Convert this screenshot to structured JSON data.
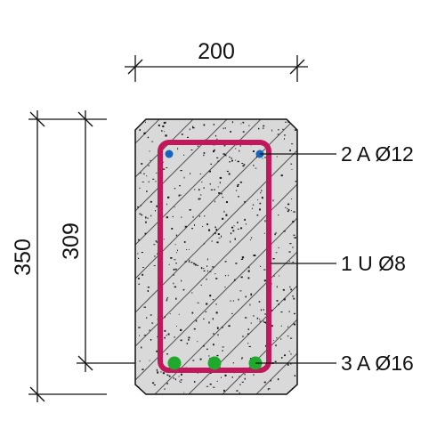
{
  "dimensions": {
    "width": "200",
    "height_total": "350",
    "height_effective": "309"
  },
  "labels": {
    "top_bars": "2 A Ø12",
    "stirrup": "1 U Ø8",
    "bottom_bars": "3 A Ø16"
  },
  "colors": {
    "concrete_fill": "#d9d9d9",
    "hatch": "#555555",
    "stirrup": "#c2185b",
    "top_bar": "#1565c0",
    "bottom_bar": "#1faa2e",
    "outline": "#111111"
  }
}
